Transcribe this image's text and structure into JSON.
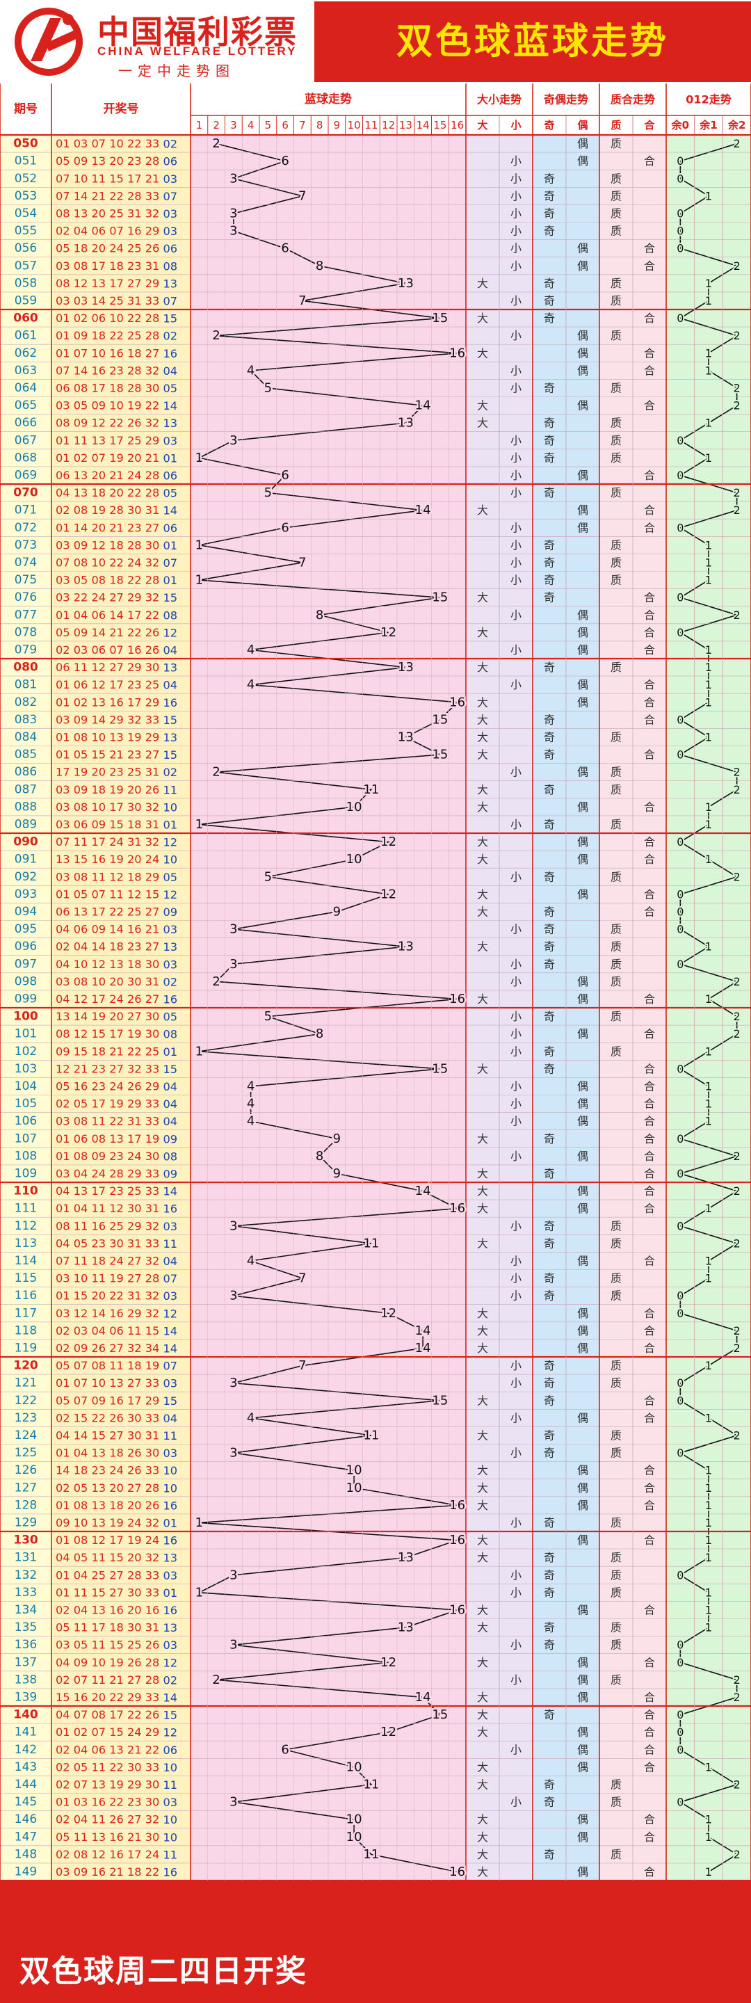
{
  "header": {
    "logo_cn": "中国福利彩票",
    "logo_en": "CHINA WELFARE LOTTERY",
    "logo_slogan": "一定中走势图",
    "page_title": "双色球蓝球走势"
  },
  "footer": {
    "text": "双色球周二四日开奖"
  },
  "table": {
    "headers": {
      "period": "期号",
      "draw": "开奖号",
      "blue": "蓝球走势",
      "size": "大小走势",
      "parity": "奇偶走势",
      "prime": "质合走势",
      "mod": "012走势"
    },
    "sub_labels": {
      "big": "大",
      "small": "小",
      "odd": "奇",
      "even": "偶",
      "prime": "质",
      "composite": "合",
      "r0": "余0",
      "r1": "余1",
      "r2": "余2"
    },
    "blue_columns": [
      "1",
      "2",
      "3",
      "4",
      "5",
      "6",
      "7",
      "8",
      "9",
      "10",
      "11",
      "12",
      "13",
      "14",
      "15",
      "16"
    ]
  },
  "colors": {
    "red": "#d9221c",
    "yellow_title": "#ffe600",
    "period_bg": "#fffbd3",
    "draw_bg": "#fdf2c0",
    "blue_bg": "#f9d7e9",
    "size_bg": "#ebe3f3",
    "parity_bg": "#cfe7f8",
    "prime_bg": "#fbe2e8",
    "mod_bg": "#d9f6d6",
    "period_text": "#1a7ca8",
    "ball_blue": "#1c45b0"
  },
  "chart_data": {
    "type": "line",
    "title": "双色球蓝球走势",
    "xlabel": "期号",
    "ylabel": "蓝球走势",
    "ylim": [
      1,
      16
    ],
    "rows": [
      {
        "period": "050",
        "reds": "01 03 07 10 22 33",
        "blue": "02",
        "size": "",
        "parity": "偶",
        "prime": "质",
        "mod": "2"
      },
      {
        "period": "051",
        "reds": "05 09 13 20 23 28",
        "blue": "06",
        "size": "小",
        "parity": "偶",
        "prime": "合",
        "mod": "0"
      },
      {
        "period": "052",
        "reds": "07 10 11 15 17 21",
        "blue": "03",
        "size": "小",
        "parity": "奇",
        "prime": "质",
        "mod": "0"
      },
      {
        "period": "053",
        "reds": "07 14 21 22 28 33",
        "blue": "07",
        "size": "小",
        "parity": "奇",
        "prime": "质",
        "mod": "1"
      },
      {
        "period": "054",
        "reds": "08 13 20 25 31 32",
        "blue": "03",
        "size": "小",
        "parity": "奇",
        "prime": "质",
        "mod": "0"
      },
      {
        "period": "055",
        "reds": "02 04 06 07 16 29",
        "blue": "03",
        "size": "小",
        "parity": "奇",
        "prime": "质",
        "mod": "0"
      },
      {
        "period": "056",
        "reds": "05 18 20 24 25 26",
        "blue": "06",
        "size": "小",
        "parity": "偶",
        "prime": "合",
        "mod": "0"
      },
      {
        "period": "057",
        "reds": "03 08 17 18 23 31",
        "blue": "08",
        "size": "小",
        "parity": "偶",
        "prime": "合",
        "mod": "2"
      },
      {
        "period": "058",
        "reds": "08 12 13 17 27 29",
        "blue": "13",
        "size": "大",
        "parity": "奇",
        "prime": "质",
        "mod": "1"
      },
      {
        "period": "059",
        "reds": "03 03 14 25 31 33",
        "blue": "07",
        "size": "小",
        "parity": "奇",
        "prime": "质",
        "mod": "1"
      },
      {
        "period": "060",
        "reds": "01 02 06 10 22 28",
        "blue": "15",
        "size": "大",
        "parity": "奇",
        "prime": "合",
        "mod": "0"
      },
      {
        "period": "061",
        "reds": "01 09 18 22 25 28",
        "blue": "02",
        "size": "小",
        "parity": "偶",
        "prime": "质",
        "mod": "2"
      },
      {
        "period": "062",
        "reds": "01 07 10 16 18 27",
        "blue": "16",
        "size": "大",
        "parity": "偶",
        "prime": "合",
        "mod": "1"
      },
      {
        "period": "063",
        "reds": "07 14 16 23 28 32",
        "blue": "04",
        "size": "小",
        "parity": "偶",
        "prime": "合",
        "mod": "1"
      },
      {
        "period": "064",
        "reds": "06 08 17 18 28 30",
        "blue": "05",
        "size": "小",
        "parity": "奇",
        "prime": "质",
        "mod": "2"
      },
      {
        "period": "065",
        "reds": "03 05 09 10 19 22",
        "blue": "14",
        "size": "大",
        "parity": "偶",
        "prime": "合",
        "mod": "2"
      },
      {
        "period": "066",
        "reds": "08 09 12 22 26 32",
        "blue": "13",
        "size": "大",
        "parity": "奇",
        "prime": "质",
        "mod": "1"
      },
      {
        "period": "067",
        "reds": "01 11 13 17 25 29",
        "blue": "03",
        "size": "小",
        "parity": "奇",
        "prime": "质",
        "mod": "0"
      },
      {
        "period": "068",
        "reds": "01 02 07 19 20 21",
        "blue": "01",
        "size": "小",
        "parity": "奇",
        "prime": "质",
        "mod": "1"
      },
      {
        "period": "069",
        "reds": "06 13 20 21 24 28",
        "blue": "06",
        "size": "小",
        "parity": "偶",
        "prime": "合",
        "mod": "0"
      },
      {
        "period": "070",
        "reds": "04 13 18 20 22 28",
        "blue": "05",
        "size": "小",
        "parity": "奇",
        "prime": "质",
        "mod": "2"
      },
      {
        "period": "071",
        "reds": "02 08 19 28 30 31",
        "blue": "14",
        "size": "大",
        "parity": "偶",
        "prime": "合",
        "mod": "2"
      },
      {
        "period": "072",
        "reds": "01 14 20 21 23 27",
        "blue": "06",
        "size": "小",
        "parity": "偶",
        "prime": "合",
        "mod": "0"
      },
      {
        "period": "073",
        "reds": "03 09 12 18 28 30",
        "blue": "01",
        "size": "小",
        "parity": "奇",
        "prime": "质",
        "mod": "1"
      },
      {
        "period": "074",
        "reds": "07 08 10 22 24 32",
        "blue": "07",
        "size": "小",
        "parity": "奇",
        "prime": "质",
        "mod": "1"
      },
      {
        "period": "075",
        "reds": "03 05 08 18 22 28",
        "blue": "01",
        "size": "小",
        "parity": "奇",
        "prime": "质",
        "mod": "1"
      },
      {
        "period": "076",
        "reds": "03 22 24 27 29 32",
        "blue": "15",
        "size": "大",
        "parity": "奇",
        "prime": "合",
        "mod": "0"
      },
      {
        "period": "077",
        "reds": "01 04 06 14 17 22",
        "blue": "08",
        "size": "小",
        "parity": "偶",
        "prime": "合",
        "mod": "2"
      },
      {
        "period": "078",
        "reds": "05 09 14 21 22 26",
        "blue": "12",
        "size": "大",
        "parity": "偶",
        "prime": "合",
        "mod": "0"
      },
      {
        "period": "079",
        "reds": "02 03 06 07 16 26",
        "blue": "04",
        "size": "小",
        "parity": "偶",
        "prime": "合",
        "mod": "1"
      },
      {
        "period": "080",
        "reds": "06 11 12 27 29 30",
        "blue": "13",
        "size": "大",
        "parity": "奇",
        "prime": "质",
        "mod": "1"
      },
      {
        "period": "081",
        "reds": "01 06 12 17 23 25",
        "blue": "04",
        "size": "小",
        "parity": "偶",
        "prime": "合",
        "mod": "1"
      },
      {
        "period": "082",
        "reds": "01 02 13 16 17 29",
        "blue": "16",
        "size": "大",
        "parity": "偶",
        "prime": "合",
        "mod": "1"
      },
      {
        "period": "083",
        "reds": "03 09 14 29 32 33",
        "blue": "15",
        "size": "大",
        "parity": "奇",
        "prime": "合",
        "mod": "0"
      },
      {
        "period": "084",
        "reds": "01 08 10 13 19 29",
        "blue": "13",
        "size": "大",
        "parity": "奇",
        "prime": "质",
        "mod": "1"
      },
      {
        "period": "085",
        "reds": "01 05 15 21 23 27",
        "blue": "15",
        "size": "大",
        "parity": "奇",
        "prime": "合",
        "mod": "0"
      },
      {
        "period": "086",
        "reds": "17 19 20 23 25 31",
        "blue": "02",
        "size": "小",
        "parity": "偶",
        "prime": "质",
        "mod": "2"
      },
      {
        "period": "087",
        "reds": "03 09 18 19 20 26",
        "blue": "11",
        "size": "大",
        "parity": "奇",
        "prime": "质",
        "mod": "2"
      },
      {
        "period": "088",
        "reds": "03 08 10 17 30 32",
        "blue": "10",
        "size": "大",
        "parity": "偶",
        "prime": "合",
        "mod": "1"
      },
      {
        "period": "089",
        "reds": "03 06 09 15 18 31",
        "blue": "01",
        "size": "小",
        "parity": "奇",
        "prime": "质",
        "mod": "1"
      },
      {
        "period": "090",
        "reds": "07 11 17 24 31 32",
        "blue": "12",
        "size": "大",
        "parity": "偶",
        "prime": "合",
        "mod": "0"
      },
      {
        "period": "091",
        "reds": "13 15 16 19 20 24",
        "blue": "10",
        "size": "大",
        "parity": "偶",
        "prime": "合",
        "mod": "1"
      },
      {
        "period": "092",
        "reds": "03 08 11 12 18 29",
        "blue": "05",
        "size": "小",
        "parity": "奇",
        "prime": "质",
        "mod": "2"
      },
      {
        "period": "093",
        "reds": "01 05 07 11 12 15",
        "blue": "12",
        "size": "大",
        "parity": "偶",
        "prime": "合",
        "mod": "0"
      },
      {
        "period": "094",
        "reds": "06 13 17 22 25 27",
        "blue": "09",
        "size": "大",
        "parity": "奇",
        "prime": "合",
        "mod": "0"
      },
      {
        "period": "095",
        "reds": "04 06 09 14 16 21",
        "blue": "03",
        "size": "小",
        "parity": "奇",
        "prime": "质",
        "mod": "0"
      },
      {
        "period": "096",
        "reds": "02 04 14 18 23 27",
        "blue": "13",
        "size": "大",
        "parity": "奇",
        "prime": "质",
        "mod": "1"
      },
      {
        "period": "097",
        "reds": "04 10 12 13 18 30",
        "blue": "03",
        "size": "小",
        "parity": "奇",
        "prime": "质",
        "mod": "0"
      },
      {
        "period": "098",
        "reds": "03 08 10 20 30 31",
        "blue": "02",
        "size": "小",
        "parity": "偶",
        "prime": "质",
        "mod": "2"
      },
      {
        "period": "099",
        "reds": "04 12 17 24 26 27",
        "blue": "16",
        "size": "大",
        "parity": "偶",
        "prime": "合",
        "mod": "1"
      },
      {
        "period": "100",
        "reds": "13 14 19 20 27 30",
        "blue": "05",
        "size": "小",
        "parity": "奇",
        "prime": "质",
        "mod": "2"
      },
      {
        "period": "101",
        "reds": "08 12 15 17 19 30",
        "blue": "08",
        "size": "小",
        "parity": "偶",
        "prime": "合",
        "mod": "2"
      },
      {
        "period": "102",
        "reds": "09 15 18 21 22 25",
        "blue": "01",
        "size": "小",
        "parity": "奇",
        "prime": "质",
        "mod": "1"
      },
      {
        "period": "103",
        "reds": "12 21 23 27 32 33",
        "blue": "15",
        "size": "大",
        "parity": "奇",
        "prime": "合",
        "mod": "0"
      },
      {
        "period": "104",
        "reds": "05 16 23 24 26 29",
        "blue": "04",
        "size": "小",
        "parity": "偶",
        "prime": "合",
        "mod": "1"
      },
      {
        "period": "105",
        "reds": "02 05 17 19 29 33",
        "blue": "04",
        "size": "小",
        "parity": "偶",
        "prime": "合",
        "mod": "1"
      },
      {
        "period": "106",
        "reds": "03 08 11 22 31 33",
        "blue": "04",
        "size": "小",
        "parity": "偶",
        "prime": "合",
        "mod": "1"
      },
      {
        "period": "107",
        "reds": "01 06 08 13 17 19",
        "blue": "09",
        "size": "大",
        "parity": "奇",
        "prime": "合",
        "mod": "0"
      },
      {
        "period": "108",
        "reds": "01 08 09 23 24 30",
        "blue": "08",
        "size": "小",
        "parity": "偶",
        "prime": "合",
        "mod": "2"
      },
      {
        "period": "109",
        "reds": "03 04 24 28 29 33",
        "blue": "09",
        "size": "大",
        "parity": "奇",
        "prime": "合",
        "mod": "0"
      },
      {
        "period": "110",
        "reds": "04 13 17 23 25 33",
        "blue": "14",
        "size": "大",
        "parity": "偶",
        "prime": "合",
        "mod": "2"
      },
      {
        "period": "111",
        "reds": "01 04 11 12 30 31",
        "blue": "16",
        "size": "大",
        "parity": "偶",
        "prime": "合",
        "mod": "1"
      },
      {
        "period": "112",
        "reds": "08 11 16 25 29 32",
        "blue": "03",
        "size": "小",
        "parity": "奇",
        "prime": "质",
        "mod": "0"
      },
      {
        "period": "113",
        "reds": "04 05 23 30 31 33",
        "blue": "11",
        "size": "大",
        "parity": "奇",
        "prime": "质",
        "mod": "2"
      },
      {
        "period": "114",
        "reds": "07 11 18 24 27 32",
        "blue": "04",
        "size": "小",
        "parity": "偶",
        "prime": "合",
        "mod": "1"
      },
      {
        "period": "115",
        "reds": "03 10 11 19 27 28",
        "blue": "07",
        "size": "小",
        "parity": "奇",
        "prime": "质",
        "mod": "1"
      },
      {
        "period": "116",
        "reds": "01 15 20 22 31 32",
        "blue": "03",
        "size": "小",
        "parity": "奇",
        "prime": "质",
        "mod": "0"
      },
      {
        "period": "117",
        "reds": "03 12 14 16 29 32",
        "blue": "12",
        "size": "大",
        "parity": "偶",
        "prime": "合",
        "mod": "0"
      },
      {
        "period": "118",
        "reds": "02 03 04 06 11 15",
        "blue": "14",
        "size": "大",
        "parity": "偶",
        "prime": "合",
        "mod": "2"
      },
      {
        "period": "119",
        "reds": "02 09 26 27 32 34",
        "blue": "14",
        "size": "大",
        "parity": "偶",
        "prime": "合",
        "mod": "2"
      },
      {
        "period": "120",
        "reds": "05 07 08 11 18 19",
        "blue": "07",
        "size": "小",
        "parity": "奇",
        "prime": "质",
        "mod": "1"
      },
      {
        "period": "121",
        "reds": "01 07 10 13 27 33",
        "blue": "03",
        "size": "小",
        "parity": "奇",
        "prime": "质",
        "mod": "0"
      },
      {
        "period": "122",
        "reds": "05 07 09 16 17 29",
        "blue": "15",
        "size": "大",
        "parity": "奇",
        "prime": "合",
        "mod": "0"
      },
      {
        "period": "123",
        "reds": "02 15 22 26 30 33",
        "blue": "04",
        "size": "小",
        "parity": "偶",
        "prime": "合",
        "mod": "1"
      },
      {
        "period": "124",
        "reds": "04 14 15 27 30 31",
        "blue": "11",
        "size": "大",
        "parity": "奇",
        "prime": "质",
        "mod": "2"
      },
      {
        "period": "125",
        "reds": "01 04 13 18 26 30",
        "blue": "03",
        "size": "小",
        "parity": "奇",
        "prime": "质",
        "mod": "0"
      },
      {
        "period": "126",
        "reds": "14 18 23 24 26 33",
        "blue": "10",
        "size": "大",
        "parity": "偶",
        "prime": "合",
        "mod": "1"
      },
      {
        "period": "127",
        "reds": "02 05 13 20 27 28",
        "blue": "10",
        "size": "大",
        "parity": "偶",
        "prime": "合",
        "mod": "1"
      },
      {
        "period": "128",
        "reds": "01 08 13 18 20 26",
        "blue": "16",
        "size": "大",
        "parity": "偶",
        "prime": "合",
        "mod": "1"
      },
      {
        "period": "129",
        "reds": "09 10 13 19 24 32",
        "blue": "01",
        "size": "小",
        "parity": "奇",
        "prime": "质",
        "mod": "1"
      },
      {
        "period": "130",
        "reds": "01 08 12 17 19 24",
        "blue": "16",
        "size": "大",
        "parity": "偶",
        "prime": "合",
        "mod": "1"
      },
      {
        "period": "131",
        "reds": "04 05 11 15 20 32",
        "blue": "13",
        "size": "大",
        "parity": "奇",
        "prime": "质",
        "mod": "1"
      },
      {
        "period": "132",
        "reds": "01 04 25 27 28 33",
        "blue": "03",
        "size": "小",
        "parity": "奇",
        "prime": "质",
        "mod": "0"
      },
      {
        "period": "133",
        "reds": "01 11 15 27 30 33",
        "blue": "01",
        "size": "小",
        "parity": "奇",
        "prime": "质",
        "mod": "1"
      },
      {
        "period": "134",
        "reds": "02 04 13 16 20 16",
        "blue": "16",
        "size": "大",
        "parity": "偶",
        "prime": "合",
        "mod": "1"
      },
      {
        "period": "135",
        "reds": "05 11 17 18 30 31",
        "blue": "13",
        "size": "大",
        "parity": "奇",
        "prime": "质",
        "mod": "1"
      },
      {
        "period": "136",
        "reds": "03 05 11 15 25 26",
        "blue": "03",
        "size": "小",
        "parity": "奇",
        "prime": "质",
        "mod": "0"
      },
      {
        "period": "137",
        "reds": "04 09 10 19 26 28",
        "blue": "12",
        "size": "大",
        "parity": "偶",
        "prime": "合",
        "mod": "0"
      },
      {
        "period": "138",
        "reds": "02 07 11 21 27 28",
        "blue": "02",
        "size": "小",
        "parity": "偶",
        "prime": "质",
        "mod": "2"
      },
      {
        "period": "139",
        "reds": "15 16 20 22 29 33",
        "blue": "14",
        "size": "大",
        "parity": "偶",
        "prime": "合",
        "mod": "2"
      },
      {
        "period": "140",
        "reds": "04 07 08 17 22 26",
        "blue": "15",
        "size": "大",
        "parity": "奇",
        "prime": "合",
        "mod": "0"
      },
      {
        "period": "141",
        "reds": "01 02 07 15 24 29",
        "blue": "12",
        "size": "大",
        "parity": "偶",
        "prime": "合",
        "mod": "0"
      },
      {
        "period": "142",
        "reds": "02 04 06 13 21 22",
        "blue": "06",
        "size": "小",
        "parity": "偶",
        "prime": "合",
        "mod": "0"
      },
      {
        "period": "143",
        "reds": "02 05 11 22 30 33",
        "blue": "10",
        "size": "大",
        "parity": "偶",
        "prime": "合",
        "mod": "1"
      },
      {
        "period": "144",
        "reds": "02 07 13 19 29 30",
        "blue": "11",
        "size": "大",
        "parity": "奇",
        "prime": "质",
        "mod": "2"
      },
      {
        "period": "145",
        "reds": "01 03 16 22 23 30",
        "blue": "03",
        "size": "小",
        "parity": "奇",
        "prime": "质",
        "mod": "0"
      },
      {
        "period": "146",
        "reds": "02 04 11 26 27 32",
        "blue": "10",
        "size": "大",
        "parity": "偶",
        "prime": "合",
        "mod": "1"
      },
      {
        "period": "147",
        "reds": "05 11 13 16 21 30",
        "blue": "10",
        "size": "大",
        "parity": "偶",
        "prime": "合",
        "mod": "1"
      },
      {
        "period": "148",
        "reds": "02 08 12 16 17 24",
        "blue": "11",
        "size": "大",
        "parity": "奇",
        "prime": "质",
        "mod": "2"
      },
      {
        "period": "149",
        "reds": "03 09 16 21 18 22",
        "blue": "16",
        "size": "大",
        "parity": "偶",
        "prime": "合",
        "mod": "1"
      }
    ]
  }
}
